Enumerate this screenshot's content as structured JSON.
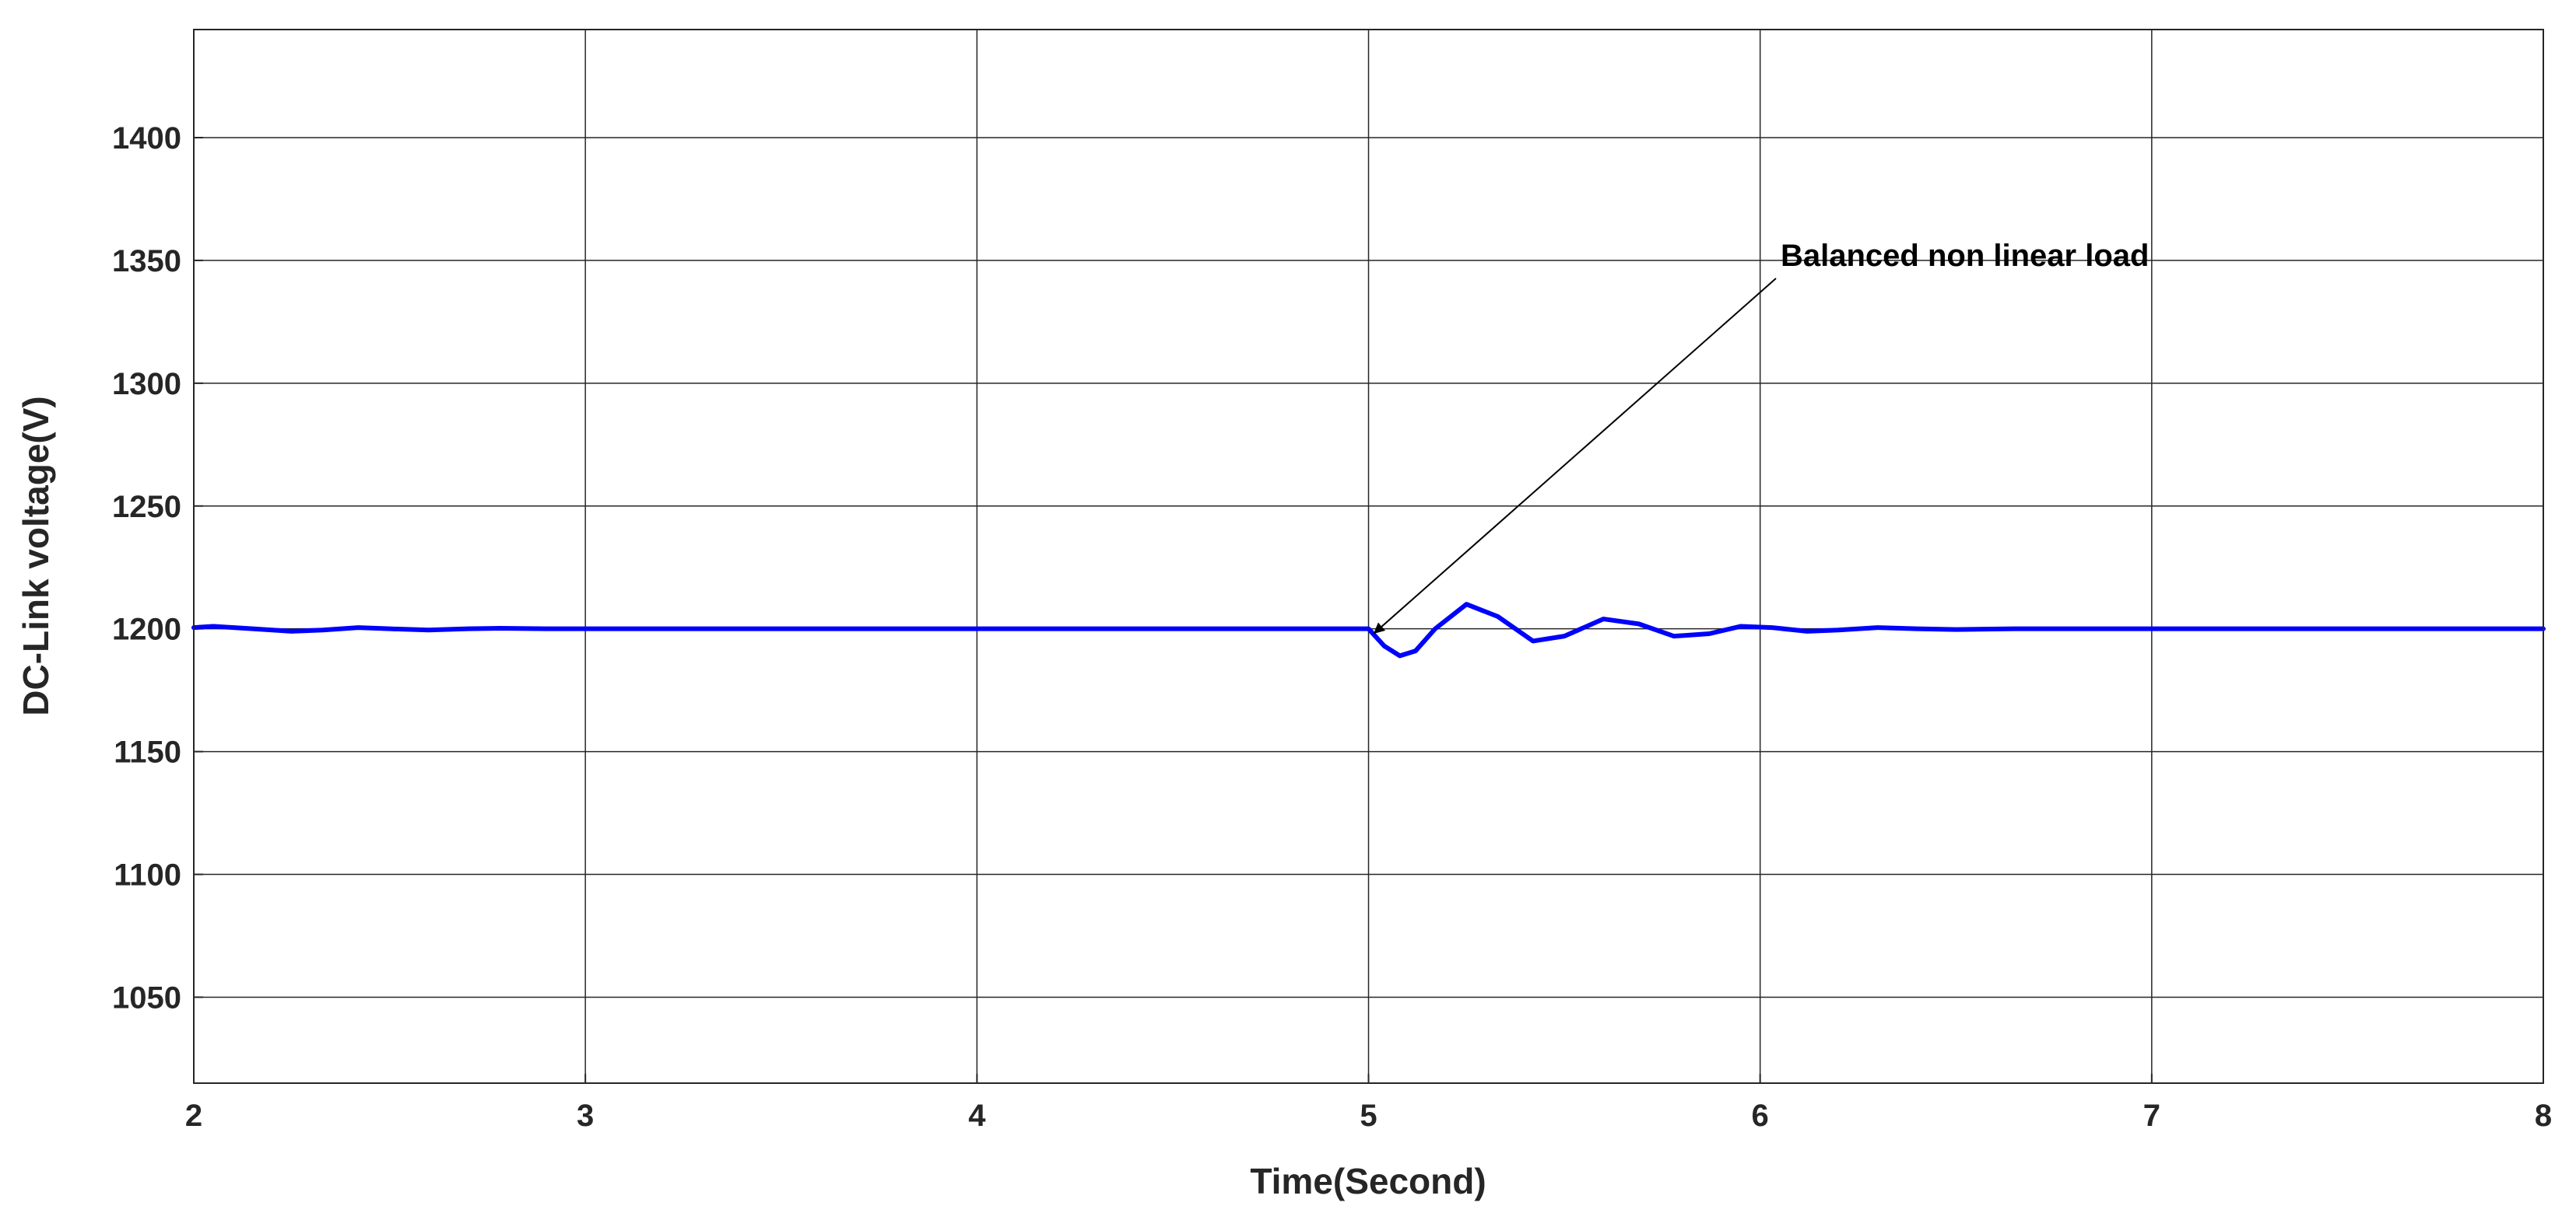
{
  "chart_data": {
    "type": "line",
    "x_label": "Time(Second)",
    "y_label": "DC-Link voltage(V)",
    "annotation": "Balanced non linear load",
    "x": [
      2,
      2.05,
      2.15,
      2.25,
      2.33,
      2.42,
      2.5,
      2.6,
      2.7,
      2.78,
      2.9,
      3,
      3.5,
      4,
      4.5,
      5,
      5.04,
      5.08,
      5.12,
      5.17,
      5.25,
      5.33,
      5.42,
      5.5,
      5.6,
      5.69,
      5.78,
      5.87,
      5.95,
      6.03,
      6.12,
      6.2,
      6.3,
      6.4,
      6.5,
      6.65,
      7,
      7.5,
      8
    ],
    "series": [
      {
        "color": "#0000ff",
        "values": [
          1200.5,
          1201,
          1200,
          1199,
          1199.5,
          1200.5,
          1200,
          1199.5,
          1200,
          1200.2,
          1200,
          1200,
          1200,
          1200,
          1200,
          1200,
          1193,
          1189,
          1191,
          1200,
          1210,
          1205,
          1195,
          1197,
          1204,
          1202,
          1197,
          1198,
          1201,
          1200.5,
          1199,
          1199.5,
          1200.5,
          1200,
          1199.7,
          1200,
          1200,
          1200,
          1200
        ]
      }
    ],
    "xlim": [
      2,
      8
    ],
    "xticks": [
      2,
      3,
      4,
      5,
      6,
      7,
      8
    ],
    "ylim": [
      1015,
      1444
    ],
    "yticks": [
      1050,
      1100,
      1150,
      1200,
      1250,
      1300,
      1350,
      1400
    ],
    "grid": true
  }
}
